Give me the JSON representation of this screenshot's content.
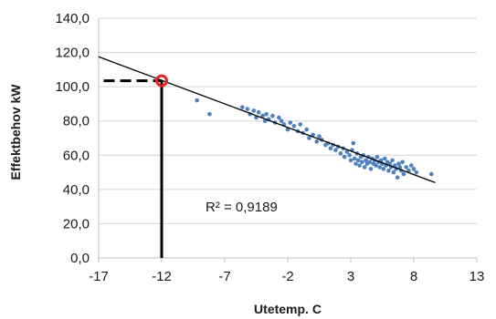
{
  "chart_data": {
    "type": "scatter",
    "xlabel": "Utetemp. C",
    "ylabel": "Effektbehov kW",
    "xlim": [
      -17,
      13
    ],
    "ylim": [
      0,
      140
    ],
    "x_ticks": [
      -17,
      -12,
      -7,
      -2,
      3,
      8,
      13
    ],
    "x_tick_labels": [
      "-17",
      "-12",
      "-7",
      "-2",
      "3",
      "8",
      "13"
    ],
    "y_ticks": [
      0,
      20,
      40,
      60,
      80,
      100,
      120,
      140
    ],
    "y_tick_labels": [
      "0,0",
      "20,0",
      "40,0",
      "60,0",
      "80,0",
      "100,0",
      "120,0",
      "140,0"
    ],
    "grid": "horizontal",
    "point_color": "#4f81bd",
    "trendline": {
      "x": [
        -17,
        9.7
      ],
      "y": [
        117.5,
        44
      ],
      "color": "#000000",
      "annotation": "R² = 0,9189"
    },
    "highlight": {
      "x": -12,
      "y": 103.5,
      "color": "#e8231d"
    },
    "points": [
      [
        -9.2,
        92
      ],
      [
        -8.2,
        84
      ],
      [
        -5.6,
        88
      ],
      [
        -5.2,
        87
      ],
      [
        -5.0,
        84
      ],
      [
        -4.7,
        86
      ],
      [
        -4.5,
        82
      ],
      [
        -4.3,
        85
      ],
      [
        -4.0,
        83
      ],
      [
        -3.8,
        80
      ],
      [
        -3.7,
        84
      ],
      [
        -3.5,
        81
      ],
      [
        -3.2,
        83
      ],
      [
        -3.0,
        79
      ],
      [
        -2.7,
        82
      ],
      [
        -2.5,
        80
      ],
      [
        -2.3,
        78
      ],
      [
        -2.0,
        75
      ],
      [
        -1.8,
        79
      ],
      [
        -1.5,
        77
      ],
      [
        -1.2,
        74
      ],
      [
        -1.0,
        78
      ],
      [
        -0.8,
        73
      ],
      [
        -0.5,
        75
      ],
      [
        -0.3,
        70
      ],
      [
        0.0,
        72
      ],
      [
        0.3,
        68
      ],
      [
        0.5,
        71
      ],
      [
        0.7,
        69
      ],
      [
        1.0,
        66
      ],
      [
        1.2,
        67
      ],
      [
        1.4,
        64
      ],
      [
        1.6,
        66
      ],
      [
        1.8,
        63
      ],
      [
        2.0,
        65
      ],
      [
        2.2,
        61
      ],
      [
        2.4,
        64
      ],
      [
        2.5,
        59
      ],
      [
        2.7,
        62
      ],
      [
        2.9,
        60
      ],
      [
        3.0,
        57
      ],
      [
        3.1,
        63
      ],
      [
        3.2,
        67
      ],
      [
        3.3,
        58
      ],
      [
        3.4,
        55
      ],
      [
        3.5,
        61
      ],
      [
        3.6,
        57
      ],
      [
        3.7,
        54
      ],
      [
        3.8,
        59
      ],
      [
        3.9,
        56
      ],
      [
        4.0,
        60
      ],
      [
        4.1,
        53
      ],
      [
        4.2,
        57
      ],
      [
        4.3,
        55
      ],
      [
        4.4,
        59
      ],
      [
        4.5,
        56
      ],
      [
        4.6,
        52
      ],
      [
        4.7,
        58
      ],
      [
        4.8,
        55
      ],
      [
        4.9,
        57
      ],
      [
        5.0,
        54
      ],
      [
        5.1,
        59
      ],
      [
        5.2,
        56
      ],
      [
        5.3,
        53
      ],
      [
        5.4,
        57
      ],
      [
        5.5,
        55
      ],
      [
        5.6,
        52
      ],
      [
        5.7,
        58
      ],
      [
        5.8,
        54
      ],
      [
        5.9,
        56
      ],
      [
        6.0,
        51
      ],
      [
        6.1,
        55
      ],
      [
        6.2,
        53
      ],
      [
        6.3,
        57
      ],
      [
        6.4,
        50
      ],
      [
        6.5,
        54
      ],
      [
        6.6,
        52
      ],
      [
        6.7,
        47
      ],
      [
        6.8,
        55
      ],
      [
        6.9,
        53
      ],
      [
        7.0,
        51
      ],
      [
        7.1,
        56
      ],
      [
        7.2,
        49
      ],
      [
        7.4,
        53
      ],
      [
        7.6,
        51
      ],
      [
        7.8,
        54
      ],
      [
        8.0,
        52
      ],
      [
        8.2,
        50
      ],
      [
        9.4,
        49
      ]
    ]
  }
}
